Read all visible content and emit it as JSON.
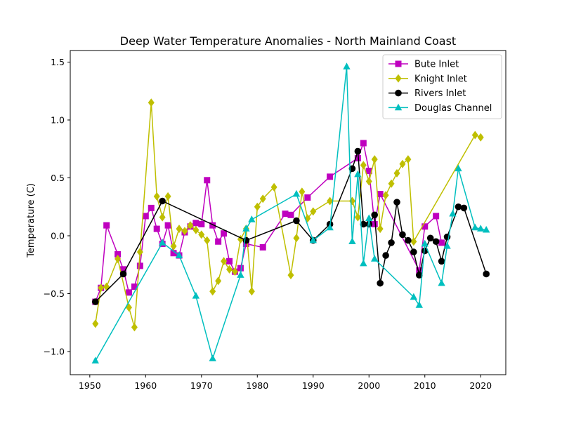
{
  "chart_data": {
    "type": "line",
    "title": "Deep Water Temperature Anomalies - North Mainland Coast",
    "xlabel": "",
    "ylabel": "Temperature (C)",
    "xlim": [
      1946.5,
      2024.5
    ],
    "ylim": [
      -1.2,
      1.6
    ],
    "xticks": [
      1950,
      1960,
      1970,
      1980,
      1990,
      2000,
      2010,
      2020
    ],
    "yticks": [
      -1.0,
      -0.5,
      0.0,
      0.5,
      1.0,
      1.5
    ],
    "ytick_labels": [
      "−1.0",
      "−0.5",
      "0.0",
      "0.5",
      "1.0",
      "1.5"
    ],
    "grid": false,
    "legend_position": "top-right",
    "series": [
      {
        "name": "Bute Inlet",
        "color": "#bf00bf",
        "marker": "square",
        "x": [
          1951,
          1952,
          1953,
          1955,
          1956,
          1957,
          1958,
          1959,
          1960,
          1961,
          1962,
          1963,
          1964,
          1965,
          1966,
          1967,
          1968,
          1969,
          1970,
          1971,
          1972,
          1973,
          1974,
          1975,
          1976,
          1977,
          1978,
          1981,
          1985,
          1986,
          1989,
          1993,
          1998,
          1999,
          2000,
          2001,
          2002,
          2009,
          2010,
          2012,
          2013
        ],
        "y": [
          -0.57,
          -0.45,
          0.09,
          -0.16,
          -0.29,
          -0.49,
          -0.44,
          -0.26,
          0.17,
          0.24,
          0.06,
          -0.07,
          0.09,
          -0.15,
          -0.17,
          0.03,
          0.08,
          0.11,
          0.1,
          0.48,
          0.09,
          -0.05,
          0.02,
          -0.22,
          -0.31,
          -0.28,
          -0.07,
          -0.1,
          0.19,
          0.18,
          0.33,
          0.51,
          0.67,
          0.8,
          0.56,
          0.1,
          0.36,
          -0.3,
          0.08,
          0.17,
          -0.06
        ]
      },
      {
        "name": "Knight Inlet",
        "color": "#bfbf00",
        "marker": "diamond",
        "x": [
          1951,
          1952,
          1953,
          1955,
          1957,
          1958,
          1959,
          1961,
          1962,
          1963,
          1964,
          1965,
          1966,
          1967,
          1968,
          1969,
          1970,
          1971,
          1972,
          1973,
          1974,
          1975,
          1976,
          1977,
          1978,
          1979,
          1980,
          1981,
          1983,
          1986,
          1987,
          1988,
          1989,
          1990,
          1993,
          1997,
          1998,
          1999,
          2000,
          2001,
          2002,
          2003,
          2004,
          2005,
          2006,
          2007,
          2008,
          2019,
          2020
        ],
        "y": [
          -0.76,
          -0.45,
          -0.44,
          -0.2,
          -0.62,
          -0.79,
          -0.14,
          1.15,
          0.34,
          0.16,
          0.34,
          -0.09,
          0.06,
          0.04,
          0.09,
          0.05,
          0.01,
          -0.04,
          -0.48,
          -0.39,
          -0.22,
          -0.29,
          -0.31,
          -0.03,
          0.06,
          -0.48,
          0.25,
          0.32,
          0.42,
          -0.34,
          -0.02,
          0.38,
          0.15,
          0.21,
          0.3,
          0.3,
          0.16,
          0.61,
          0.47,
          0.66,
          0.06,
          0.35,
          0.45,
          0.54,
          0.62,
          0.66,
          -0.05,
          0.87,
          0.85
        ]
      },
      {
        "name": "Rivers Inlet",
        "color": "#000000",
        "marker": "circle",
        "x": [
          1951,
          1956,
          1963,
          1978,
          1987,
          1990,
          1993,
          1997,
          1998,
          1999,
          2000,
          2001,
          2002,
          2003,
          2004,
          2005,
          2006,
          2007,
          2008,
          2009,
          2010,
          2011,
          2012,
          2013,
          2014,
          2016,
          2017,
          2021
        ],
        "y": [
          -0.57,
          -0.33,
          0.3,
          -0.04,
          0.13,
          -0.04,
          0.1,
          0.58,
          0.73,
          0.1,
          0.1,
          0.18,
          -0.41,
          -0.17,
          -0.06,
          0.29,
          0.01,
          -0.04,
          -0.14,
          -0.34,
          -0.13,
          -0.02,
          -0.05,
          -0.22,
          -0.01,
          0.25,
          0.24,
          -0.33
        ]
      },
      {
        "name": "Douglas Channel",
        "color": "#00bfbf",
        "marker": "triangle",
        "x": [
          1951,
          1963,
          1966,
          1969,
          1972,
          1977,
          1978,
          1979,
          1987,
          1990,
          1993,
          1996,
          1997,
          1998,
          1999,
          2000,
          2001,
          2008,
          2009,
          2010,
          2013,
          2014,
          2015,
          2016,
          2019,
          2020,
          2021
        ],
        "y": [
          -1.08,
          -0.06,
          -0.17,
          -0.52,
          -1.06,
          -0.34,
          0.06,
          0.14,
          0.36,
          -0.04,
          0.07,
          1.46,
          -0.05,
          0.53,
          -0.24,
          0.15,
          -0.2,
          -0.53,
          -0.6,
          -0.07,
          -0.41,
          -0.09,
          0.19,
          0.58,
          0.07,
          0.06,
          0.05
        ]
      }
    ]
  }
}
